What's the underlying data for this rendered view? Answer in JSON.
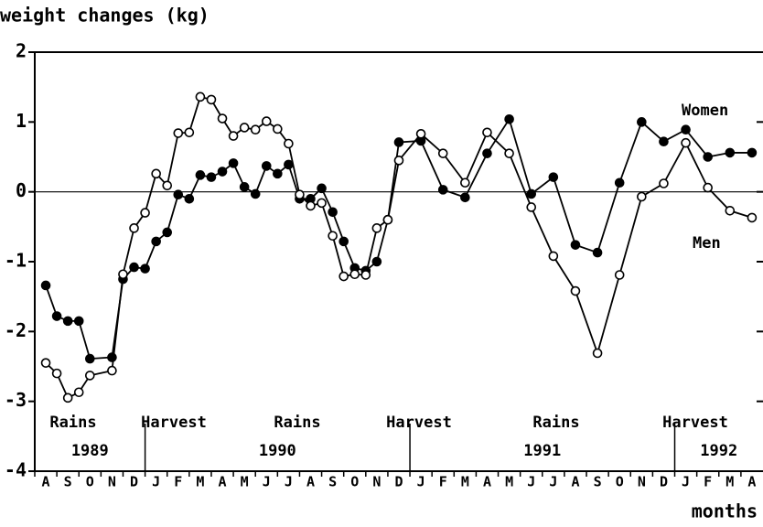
{
  "chart_data": {
    "type": "line",
    "title": "weight changes (kg)",
    "xlabel": "months",
    "months": [
      "A",
      "S",
      "O",
      "N",
      "D",
      "J",
      "F",
      "M",
      "A",
      "M",
      "J",
      "J",
      "A",
      "S",
      "O",
      "N",
      "D",
      "J",
      "F",
      "M",
      "A",
      "M",
      "J",
      "J",
      "A",
      "S",
      "O",
      "N",
      "D",
      "J",
      "F",
      "M",
      "A"
    ],
    "years": [
      "1989",
      "1990",
      "1991",
      "1992"
    ],
    "seasons": [
      "Rains",
      "Harvest",
      "Rains",
      "Harvest",
      "Rains",
      "Harvest"
    ],
    "x": [
      0.5,
      1,
      1.5,
      2,
      2.5,
      3.5,
      4,
      4.5,
      5,
      5.5,
      6,
      6.5,
      7,
      7.5,
      8,
      8.5,
      9,
      9.5,
      10,
      10.5,
      11,
      11.5,
      12,
      12.5,
      13,
      13.5,
      14,
      14.5,
      15,
      15.5,
      16,
      16.5,
      17.5,
      18.5,
      19.5,
      20.5,
      21.5,
      22.5,
      23.5,
      24.5,
      25.5,
      26.5,
      27.5,
      28.5,
      29.5,
      30.5,
      31.5,
      32.5
    ],
    "xlim": [
      0,
      33
    ],
    "ylim": [
      -4,
      2
    ],
    "yticks": [
      -4,
      -3,
      -2,
      -1,
      0,
      1,
      2
    ],
    "series": [
      {
        "name": "Women",
        "color": "#000000",
        "values": [
          -1.34,
          -1.78,
          -1.85,
          -1.85,
          -2.39,
          -2.37,
          -1.25,
          -1.08,
          -1.1,
          -0.71,
          -0.58,
          -0.04,
          -0.1,
          0.24,
          0.21,
          0.29,
          0.41,
          0.07,
          -0.03,
          0.37,
          0.26,
          0.39,
          -0.1,
          -0.1,
          0.05,
          -0.29,
          -0.71,
          -1.09,
          -1.13,
          -1.0,
          -0.4,
          0.71,
          0.73,
          0.03,
          -0.08,
          0.55,
          1.04,
          -0.03,
          0.21,
          -0.76,
          -0.87,
          0.13,
          1.0,
          0.72,
          0.89,
          0.5,
          0.56,
          0.56
        ]
      },
      {
        "name": "Men",
        "color": "#ffffff",
        "values": [
          -2.45,
          -2.6,
          -2.95,
          -2.87,
          -2.63,
          -2.56,
          -1.18,
          -0.52,
          -0.3,
          0.26,
          0.09,
          0.84,
          0.85,
          1.36,
          1.32,
          1.05,
          0.8,
          0.92,
          0.89,
          1.01,
          0.9,
          0.69,
          -0.04,
          -0.2,
          -0.16,
          -0.63,
          -1.21,
          -1.18,
          -1.19,
          -0.52,
          -0.4,
          0.45,
          0.83,
          0.55,
          0.13,
          0.85,
          0.55,
          -0.22,
          -0.92,
          -1.42,
          -2.31,
          -1.19,
          -0.07,
          0.12,
          0.7,
          0.06,
          -0.27,
          -0.37
        ]
      }
    ]
  }
}
